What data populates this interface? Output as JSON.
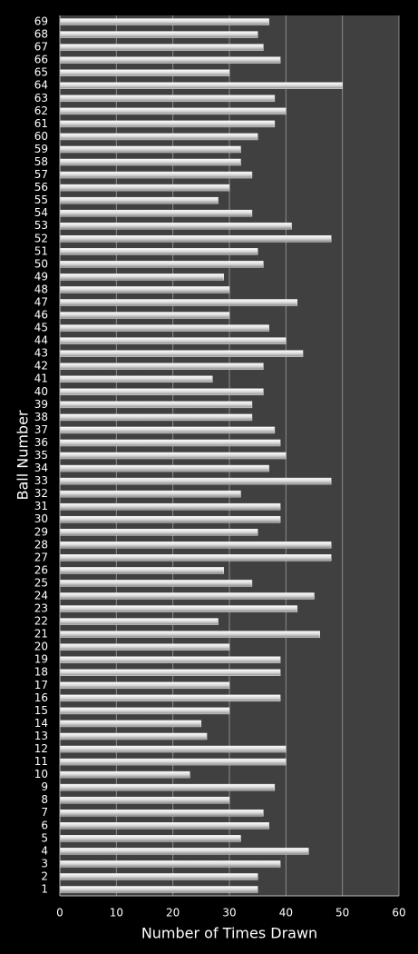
{
  "chart_data": {
    "type": "hbar",
    "x_label": "Number of Times Drawn",
    "y_label": "Ball Number",
    "categories": [
      "1",
      "2",
      "3",
      "4",
      "5",
      "6",
      "7",
      "8",
      "9",
      "10",
      "11",
      "12",
      "13",
      "14",
      "15",
      "16",
      "17",
      "18",
      "19",
      "20",
      "21",
      "22",
      "23",
      "24",
      "25",
      "26",
      "27",
      "28",
      "29",
      "30",
      "31",
      "32",
      "33",
      "34",
      "35",
      "36",
      "37",
      "38",
      "39",
      "40",
      "41",
      "42",
      "43",
      "44",
      "45",
      "46",
      "47",
      "48",
      "49",
      "50",
      "51",
      "52",
      "53",
      "54",
      "55",
      "56",
      "57",
      "58",
      "59",
      "60",
      "61",
      "62",
      "63",
      "64",
      "65",
      "66",
      "67",
      "68",
      "69"
    ],
    "values": [
      35,
      35,
      39,
      44,
      32,
      37,
      36,
      30,
      38,
      23,
      40,
      40,
      26,
      25,
      30,
      39,
      30,
      39,
      39,
      30,
      46,
      28,
      42,
      45,
      34,
      29,
      48,
      48,
      35,
      39,
      39,
      32,
      48,
      37,
      40,
      39,
      38,
      34,
      34,
      36,
      27,
      36,
      43,
      40,
      37,
      30,
      42,
      30,
      29,
      36,
      35,
      48,
      41,
      34,
      28,
      30,
      34,
      32,
      32,
      35,
      38,
      40,
      38,
      50,
      30,
      39,
      36,
      35,
      37
    ],
    "color": "#e8e8e8",
    "xlim": [
      0,
      60
    ],
    "xticks": [
      0,
      10,
      20,
      30,
      40,
      50,
      60
    ],
    "grid": true
  }
}
